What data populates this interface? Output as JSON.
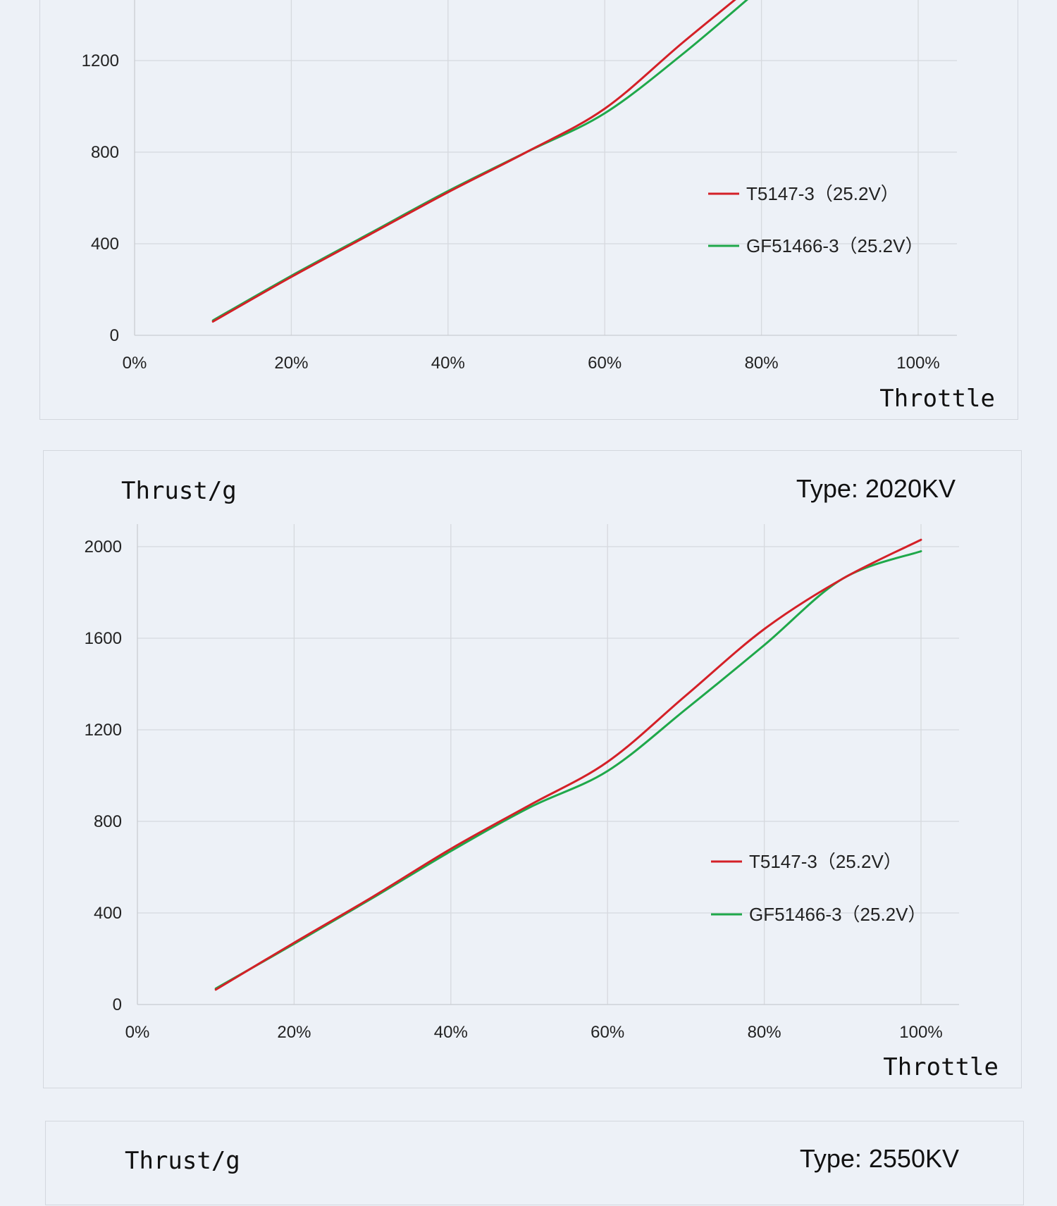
{
  "charts": [
    {
      "id": "top",
      "ylabel": "",
      "type_label": "",
      "xlabel": "Throttle",
      "y_ticks": [
        "0",
        "400",
        "800",
        "1200"
      ],
      "x_ticks": [
        "0%",
        "20%",
        "40%",
        "60%",
        "80%",
        "100%"
      ],
      "legend": [
        "T5147-3（25.2V）",
        "GF51466-3（25.2V）"
      ]
    },
    {
      "id": "mid",
      "ylabel": "Thrust/g",
      "type_label": "Type: 2020KV",
      "xlabel": "Throttle",
      "y_ticks": [
        "0",
        "400",
        "800",
        "1200",
        "1600",
        "2000"
      ],
      "x_ticks": [
        "0%",
        "20%",
        "40%",
        "60%",
        "80%",
        "100%"
      ],
      "legend": [
        "T5147-3（25.2V）",
        "GF51466-3（25.2V）"
      ]
    },
    {
      "id": "bottom",
      "ylabel": "Thrust/g",
      "type_label": "Type: 2550KV"
    }
  ],
  "colors": {
    "series_red": "#d42027",
    "series_green": "#1fa84a",
    "grid": "#d6d9de",
    "background": "#edf1f7"
  },
  "chart_data": [
    {
      "type": "line",
      "title": "",
      "xlabel": "Throttle",
      "ylabel": "",
      "xlim": [
        0,
        100
      ],
      "ylim": [
        0,
        1500
      ],
      "x_unit": "%",
      "grid": true,
      "legend_position": "right",
      "series": [
        {
          "name": "T5147-3（25.2V）",
          "color": "#d42027",
          "x": [
            10,
            20,
            30,
            40,
            50,
            60,
            70,
            80
          ],
          "y": [
            60,
            255,
            440,
            625,
            800,
            990,
            1280,
            1560
          ]
        },
        {
          "name": "GF51466-3（25.2V）",
          "color": "#1fa84a",
          "x": [
            10,
            20,
            30,
            40,
            50,
            60,
            70,
            80
          ],
          "y": [
            65,
            260,
            445,
            630,
            800,
            970,
            1230,
            1520
          ]
        }
      ]
    },
    {
      "type": "line",
      "title": "",
      "xlabel": "Throttle",
      "ylabel": "Thrust/g",
      "xlim": [
        0,
        100
      ],
      "ylim": [
        0,
        2100
      ],
      "x_unit": "%",
      "grid": true,
      "legend_position": "right",
      "series": [
        {
          "name": "T5147-3（25.2V）",
          "color": "#d42027",
          "x": [
            10,
            20,
            30,
            40,
            50,
            60,
            70,
            80,
            90,
            100
          ],
          "y": [
            65,
            270,
            470,
            680,
            870,
            1060,
            1350,
            1640,
            1860,
            2030
          ]
        },
        {
          "name": "GF51466-3（25.2V）",
          "color": "#1fa84a",
          "x": [
            10,
            20,
            30,
            40,
            50,
            60,
            70,
            80,
            90,
            100
          ],
          "y": [
            70,
            265,
            465,
            670,
            860,
            1020,
            1290,
            1570,
            1860,
            1980
          ]
        }
      ]
    }
  ]
}
